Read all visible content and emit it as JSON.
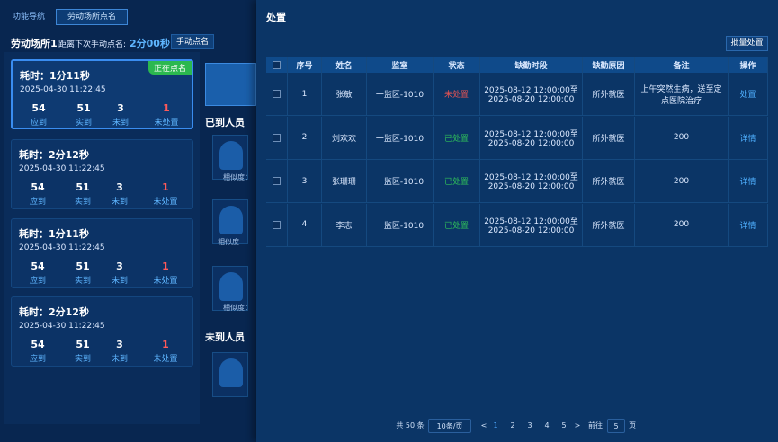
{
  "nav": {
    "tabs": [
      "功能导航",
      "劳动场所点名"
    ]
  },
  "header": {
    "place": "劳动场所1",
    "countdown_label": "距离下次手动点名:",
    "countdown": "2分00秒",
    "button": "手动点名"
  },
  "cards": [
    {
      "duration": "耗时：1分11秒",
      "time": "2025-04-30 11:22:45",
      "badge": "正在点名",
      "stats": [
        {
          "value": 54,
          "label": "应到"
        },
        {
          "value": 51,
          "label": "实到"
        },
        {
          "value": 3,
          "label": "未到"
        },
        {
          "value": 1,
          "label": "未处置"
        }
      ]
    },
    {
      "duration": "耗时：2分12秒",
      "time": "2025-04-30 11:22:45",
      "stats": [
        {
          "value": 54,
          "label": "应到"
        },
        {
          "value": 51,
          "label": "实到"
        },
        {
          "value": 3,
          "label": "未到"
        },
        {
          "value": 1,
          "label": "未处置"
        }
      ]
    },
    {
      "duration": "耗时：1分11秒",
      "time": "2025-04-30 11:22:45",
      "stats": [
        {
          "value": 54,
          "label": "应到"
        },
        {
          "value": 51,
          "label": "实到"
        },
        {
          "value": 3,
          "label": "未到"
        },
        {
          "value": 1,
          "label": "未处置"
        }
      ]
    },
    {
      "duration": "耗时：2分12秒",
      "time": "2025-04-30 11:22:45",
      "stats": [
        {
          "value": 54,
          "label": "应到"
        },
        {
          "value": 51,
          "label": "实到"
        },
        {
          "value": 3,
          "label": "未到"
        },
        {
          "value": 1,
          "label": "未处置"
        }
      ]
    }
  ],
  "middle": {
    "arrived_title": "已到人员",
    "absent_title": "未到人员",
    "similarity": [
      "相似度：",
      "相似度",
      "相似度："
    ]
  },
  "modal": {
    "title": "处置",
    "batch_button": "批量处置",
    "columns": [
      "序号",
      "姓名",
      "监室",
      "状态",
      "缺勤时段",
      "缺勤原因",
      "备注",
      "操作"
    ],
    "rows": [
      {
        "no": 1,
        "name": "张敏",
        "cell": "一监区-1010",
        "status": "未处置",
        "status_color": "#e45353",
        "period": [
          "2025-08-12 12:00:00至",
          "2025-08-20 12:00:00"
        ],
        "reason": "所外就医",
        "note": "上午突然生病，送至定点医院治疗",
        "action": "处置"
      },
      {
        "no": 2,
        "name": "刘欢欢",
        "cell": "一监区-1010",
        "status": "已处置",
        "status_color": "#2fbf5a",
        "period": [
          "2025-08-12 12:00:00至",
          "2025-08-20 12:00:00"
        ],
        "reason": "所外就医",
        "note": "200",
        "action": "详情"
      },
      {
        "no": 3,
        "name": "张珊珊",
        "cell": "一监区-1010",
        "status": "已处置",
        "status_color": "#2fbf5a",
        "period": [
          "2025-08-12 12:00:00至",
          "2025-08-20 12:00:00"
        ],
        "reason": "所外就医",
        "note": "200",
        "action": "详情"
      },
      {
        "no": 4,
        "name": "李志",
        "cell": "一监区-1010",
        "status": "已处置",
        "status_color": "#2fbf5a",
        "period": [
          "2025-08-12 12:00:00至",
          "2025-08-20 12:00:00"
        ],
        "reason": "所外就医",
        "note": "200",
        "action": "详情"
      }
    ]
  },
  "pagination": {
    "total": "共 50 条",
    "page_size": "10条/页",
    "prev": "<",
    "pages": [
      1,
      2,
      3,
      4,
      5
    ],
    "current": 1,
    "next": ">",
    "goto_label": "前往",
    "goto_value": 5,
    "goto_unit": "页"
  }
}
